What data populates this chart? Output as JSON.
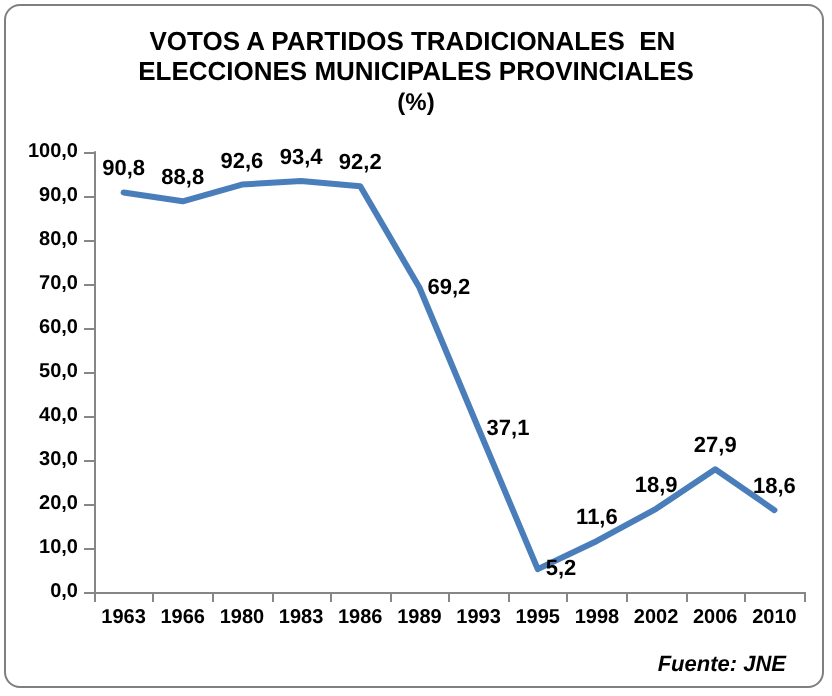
{
  "chart_data": {
    "type": "line",
    "title": "VOTOS A PARTIDOS TRADICIONALES  EN ELECCIONES MUNICIPALES PROVINCIALES",
    "subtitle": "(%)",
    "categories": [
      "1963",
      "1966",
      "1980",
      "1983",
      "1986",
      "1989",
      "1993",
      "1995",
      "1998",
      "2002",
      "2006",
      "2010"
    ],
    "series": [
      {
        "color": "#4a7ebb",
        "values": [
          90.8,
          88.8,
          92.6,
          93.4,
          92.2,
          69.2,
          37.1,
          5.2,
          11.6,
          18.9,
          27.9,
          18.6
        ],
        "value_labels": [
          "90,8",
          "88,8",
          "92,6",
          "93,4",
          "92,2",
          "69,2",
          "37,1",
          "5,2",
          "11,6",
          "18,9",
          "27,9",
          "18,6"
        ]
      }
    ],
    "ylim": [
      0,
      100
    ],
    "yticks": [
      {
        "value": 0,
        "label": "0,0"
      },
      {
        "value": 10,
        "label": "10,0"
      },
      {
        "value": 20,
        "label": "20,0"
      },
      {
        "value": 30,
        "label": "30,0"
      },
      {
        "value": 40,
        "label": "40,0"
      },
      {
        "value": 50,
        "label": "50,0"
      },
      {
        "value": 60,
        "label": "60,0"
      },
      {
        "value": 70,
        "label": "70,0"
      },
      {
        "value": 80,
        "label": "80,0"
      },
      {
        "value": 90,
        "label": "90,0"
      },
      {
        "value": 100,
        "label": "100,0"
      }
    ],
    "grid": false,
    "marker": "none",
    "line_style": "solid",
    "annotations": [
      "Fuente: JNE"
    ]
  }
}
